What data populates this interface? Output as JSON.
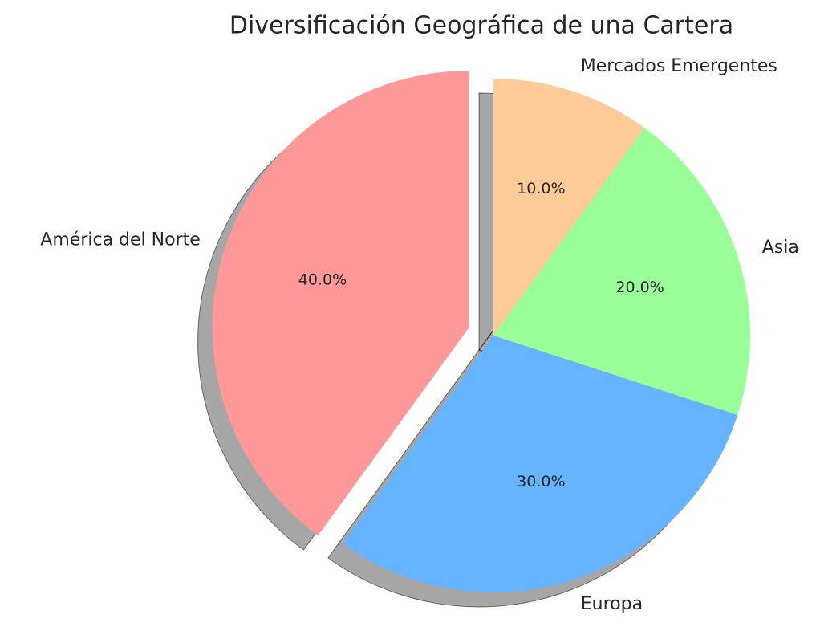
{
  "chart_data": {
    "type": "pie",
    "title": "Diversificación Geográfica de una Cartera",
    "categories": [
      "América del Norte",
      "Europa",
      "Asia",
      "Mercados Emergentes"
    ],
    "values": [
      40,
      30,
      20,
      10
    ],
    "value_labels": [
      "40.0%",
      "30.0%",
      "20.0%",
      "10.0%"
    ],
    "colors": [
      "#ff9999",
      "#66b3ff",
      "#99ff99",
      "#ffcc99"
    ],
    "explode": [
      0.1,
      0,
      0,
      0
    ],
    "startangle": 90,
    "counterclock": true,
    "shadow": true
  }
}
